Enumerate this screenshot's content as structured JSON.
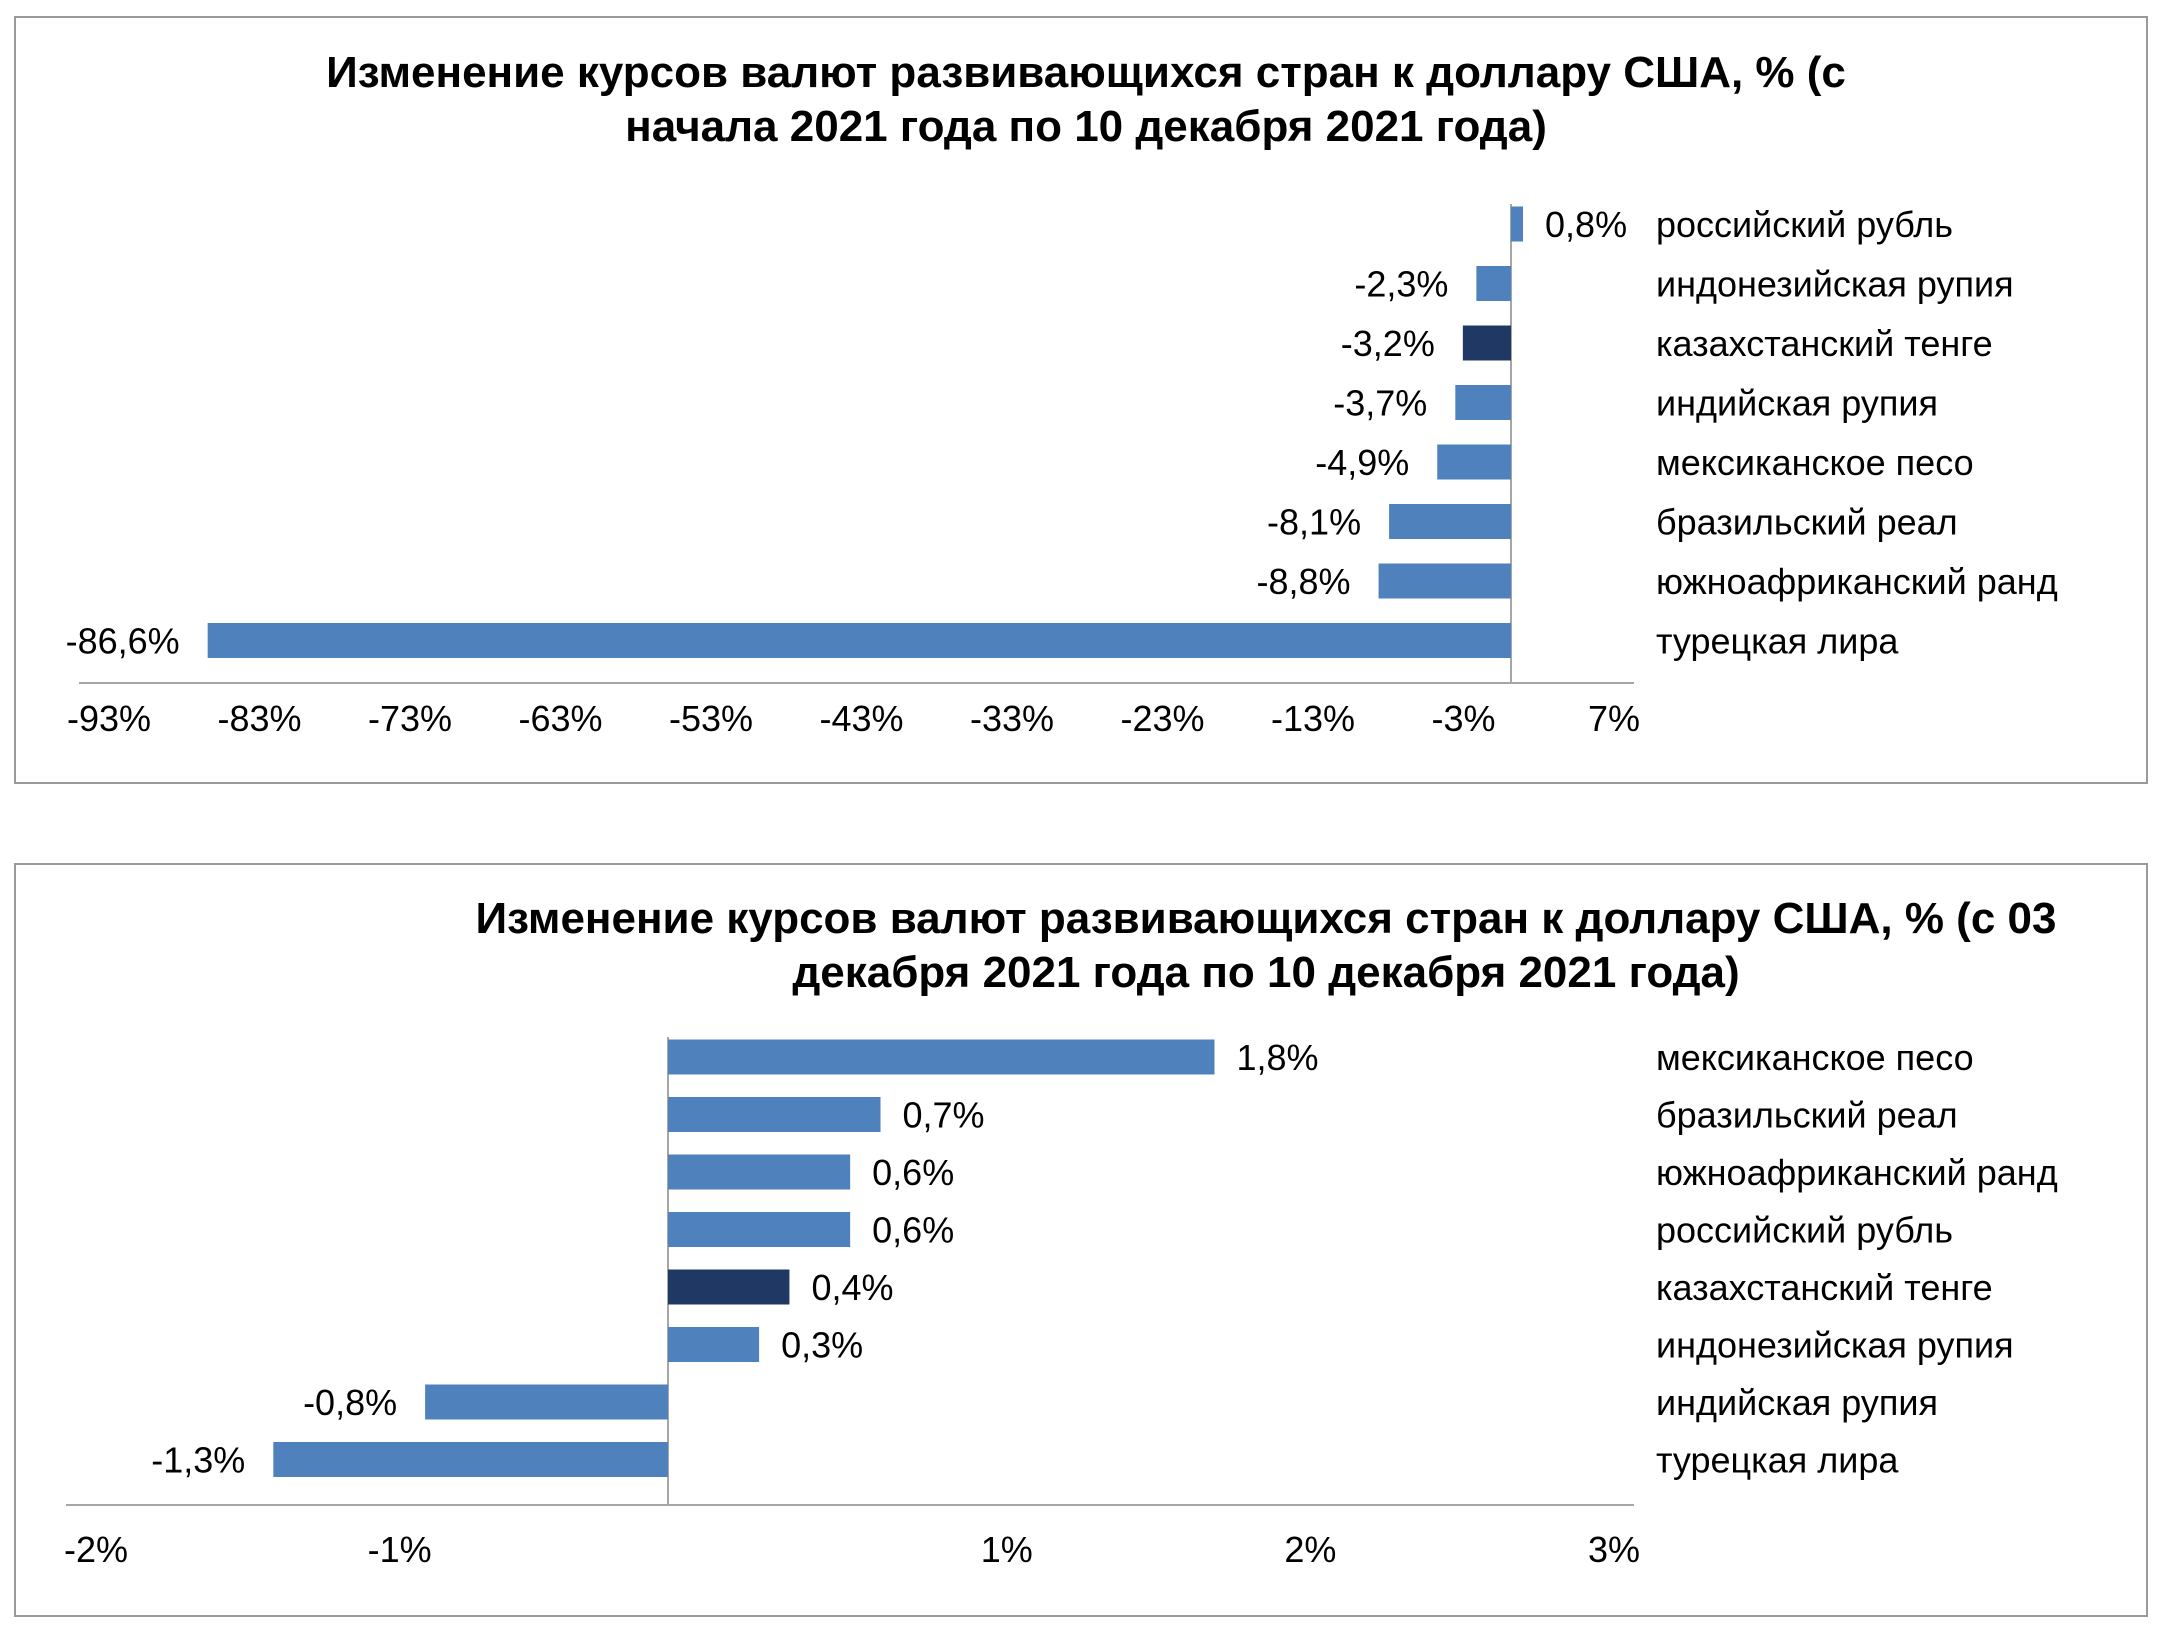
{
  "colors": {
    "bar": "#4f81bd",
    "highlight": "#1f3864",
    "axis": "#a6a6a6",
    "frame": "#9a9a9a"
  },
  "chart_data": [
    {
      "type": "bar",
      "orientation": "horizontal",
      "title_lines": [
        "Изменение курсов валют развивающихся стран к доллару США, % (с",
        "начала 2021 года по 10 декабря 2021 года)"
      ],
      "categories": [
        "российский рубль",
        "индонезийская рупия",
        "казахстанский тенге",
        "индийская рупия",
        "мексиканское песо",
        "бразильский реал",
        "южноафриканский ранд",
        "турецкая лира"
      ],
      "values": [
        0.8,
        -2.3,
        -3.2,
        -3.7,
        -4.9,
        -8.1,
        -8.8,
        -86.6
      ],
      "data_labels": [
        "0,8%",
        "-2,3%",
        "-3,2%",
        "-3,7%",
        "-4,9%",
        "-8,1%",
        "-8,8%",
        "-86,6%"
      ],
      "highlight": "казахстанский тенге",
      "xlim": [
        -93,
        7
      ],
      "xticks": [
        -93,
        -83,
        -73,
        -63,
        -53,
        -43,
        -33,
        -23,
        -13,
        -3,
        7
      ],
      "xtick_labels": [
        "-93%",
        "-83%",
        "-73%",
        "-63%",
        "-53%",
        "-43%",
        "-33%",
        "-23%",
        "-13%",
        "-3%",
        "7%"
      ],
      "grid": false,
      "legend": "none"
    },
    {
      "type": "bar",
      "orientation": "horizontal",
      "title_lines": [
        "Изменение курсов валют развивающихся стран к доллару США, % (с 03",
        "декабря 2021 года по 10 декабря 2021 года)"
      ],
      "categories": [
        "мексиканское песо",
        "бразильский реал",
        "южноафриканский ранд",
        "российский рубль",
        "казахстанский тенге",
        "индонезийская рупия",
        "индийская рупия",
        "турецкая лира"
      ],
      "values": [
        1.8,
        0.7,
        0.6,
        0.6,
        0.4,
        0.3,
        -0.8,
        -1.3
      ],
      "data_labels": [
        "1,8%",
        "0,7%",
        "0,6%",
        "0,6%",
        "0,4%",
        "0,3%",
        "-0,8%",
        "-1,3%"
      ],
      "highlight": "казахстанский тенге",
      "xlim": [
        -2,
        3
      ],
      "xticks": [
        -2,
        -1,
        1,
        2,
        3
      ],
      "xtick_labels": [
        "-2%",
        "-1%",
        "1%",
        "2%",
        "3%"
      ],
      "grid": false,
      "legend": "none"
    }
  ]
}
